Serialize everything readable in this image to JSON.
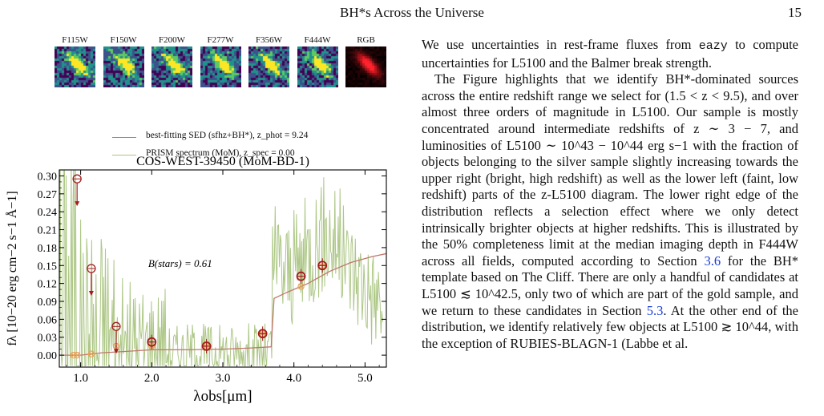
{
  "running_head": {
    "title": "BH*s Across the Universe",
    "page_number": "15"
  },
  "stamps": [
    {
      "label": "F115W",
      "kind": "noise",
      "seed": 11
    },
    {
      "label": "F150W",
      "kind": "noise",
      "seed": 23
    },
    {
      "label": "F200W",
      "kind": "noise",
      "seed": 37
    },
    {
      "label": "F277W",
      "kind": "noise",
      "seed": 41
    },
    {
      "label": "F356W",
      "kind": "noise",
      "seed": 53
    },
    {
      "label": "F444W",
      "kind": "noise",
      "seed": 67
    },
    {
      "label": "RGB",
      "kind": "rgb",
      "seed": 79
    }
  ],
  "legend": {
    "sed_label": "best-fitting SED (sfhz+BH*), z_phot = 9.24",
    "sed_color": "#c0776a",
    "prism_label": "PRISM spectrum (MoM), z_spec = 0.00",
    "prism_color": "#a9c47f"
  },
  "chart_data": {
    "type": "line",
    "title": "COS-WEST-39450 (MoM-BD-1)",
    "xlabel": "λobs[μm]",
    "ylabel": "fλ [10−20 erg cm−2 s−1 Å−1]",
    "xlim": [
      0.7,
      5.3
    ],
    "ylim": [
      -0.02,
      0.31
    ],
    "xticks": [
      "1.0",
      "2.0",
      "3.0",
      "4.0",
      "5.0"
    ],
    "yticks": [
      "0.00",
      "0.03",
      "0.06",
      "0.09",
      "0.12",
      "0.15",
      "0.18",
      "0.21",
      "0.24",
      "0.27",
      "0.30"
    ],
    "annotation": "B(stars) = 0.61",
    "series": [
      {
        "name": "best-fitting SED (sfhz+BH*)",
        "color": "#c0776a",
        "x": [
          0.7,
          1.0,
          1.3,
          1.6,
          2.0,
          2.5,
          3.0,
          3.4,
          3.68,
          3.72,
          3.9,
          4.2,
          4.5,
          4.8,
          5.1,
          5.3
        ],
        "y": [
          0.0,
          0.0,
          0.004,
          0.006,
          0.009,
          0.009,
          0.01,
          0.012,
          0.014,
          0.095,
          0.105,
          0.12,
          0.14,
          0.155,
          0.165,
          0.17
        ]
      },
      {
        "name": "PRISM spectrum (MoM)",
        "color": "#a9c47f",
        "x_range": [
          0.7,
          5.25
        ],
        "profile": "noisy; ~0 below 3.7 um, rising to ~0.15-0.25 between 3.7 and 4.6 um, declining to ~0.06-0.12 by 5.2 um; large excursions below 1.0 um"
      }
    ],
    "photometry_observed": [
      {
        "x": 1.15,
        "y": 0.145,
        "upper_limit": true
      },
      {
        "x": 1.5,
        "y": 0.048,
        "upper_limit": true
      },
      {
        "x": 2.0,
        "y": 0.022
      },
      {
        "x": 2.77,
        "y": 0.015
      },
      {
        "x": 3.56,
        "y": 0.036
      },
      {
        "x": 4.1,
        "y": 0.132
      },
      {
        "x": 4.4,
        "y": 0.15
      }
    ],
    "photometry_model": [
      {
        "x": 0.9,
        "y": 0.0
      },
      {
        "x": 0.95,
        "y": 0.0
      },
      {
        "x": 1.15,
        "y": 0.002
      },
      {
        "x": 1.5,
        "y": 0.015
      },
      {
        "x": 2.0,
        "y": 0.015
      },
      {
        "x": 2.77,
        "y": 0.015
      },
      {
        "x": 3.56,
        "y": 0.036
      },
      {
        "x": 4.1,
        "y": 0.115
      },
      {
        "x": 4.4,
        "y": 0.148
      }
    ],
    "upper_limit_extra": [
      {
        "x": 0.95,
        "y": 0.295
      }
    ]
  },
  "body": {
    "p1_a": "We use uncertainties in rest-frame fluxes from ",
    "p1_code": "eazy",
    "p1_b": " to compute uncertainties for L5100 and the Balmer break strength.",
    "p2_a": "The Figure highlights that we identify BH*-dominated sources across the entire redshift range we select for (1.5 < z < 9.5), and over almost three orders of magnitude in L5100. Our sample is mostly concentrated around intermediate redshifts of z ∼ 3 − 7, and luminosities of L5100 ∼ 10^43 − 10^44 erg s−1 with the fraction of objects belonging to the silver sample slightly increasing towards the upper right (bright, high redshift) as well as the lower left (faint, low redshift) parts of the z-L5100 diagram. The lower right edge of the distribution reflects a selection effect where we only detect intrinsically brighter objects at higher redshifts. This is illustrated by the 50% completeness limit at the median imaging depth in F444W across all fields, computed according to Section ",
    "p2_link1": "3.6",
    "p2_b": " for the BH* template based on The Cliff. There are only a handful of candidates at L5100 ≲ 10^42.5, only two of which are part of the gold sample, and we return to these candidates in Section ",
    "p2_link2": "5.3",
    "p2_c": ". At the other end of the distribution, we identify relatively few objects at L5100 ≳ 10^44, with the exception of RUBIES-BLAGN-1 (Labbe et al."
  }
}
